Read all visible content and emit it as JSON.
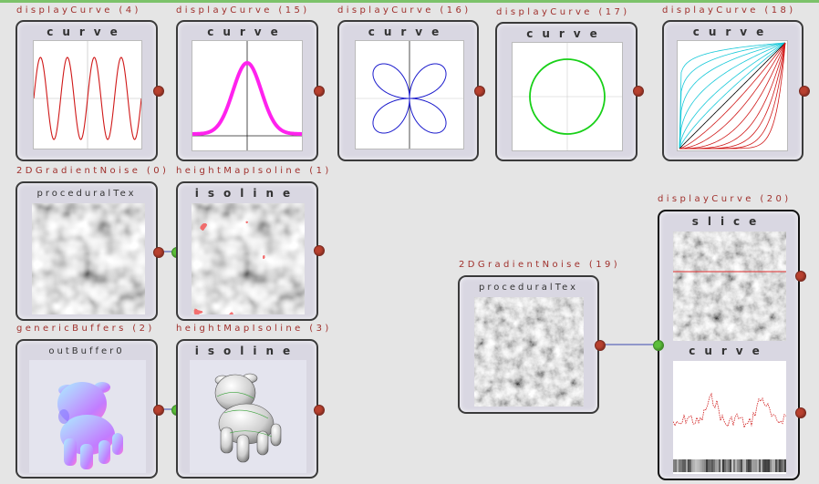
{
  "nodes": {
    "dc4": {
      "title": "displayCurve (4)",
      "panels": [
        "curve"
      ]
    },
    "dc15": {
      "title": "displayCurve (15)",
      "panels": [
        "curve"
      ]
    },
    "dc16": {
      "title": "displayCurve (16)",
      "panels": [
        "curve"
      ]
    },
    "dc17": {
      "title": "displayCurve (17)",
      "panels": [
        "curve"
      ]
    },
    "dc18": {
      "title": "displayCurve (18)",
      "panels": [
        "curve"
      ]
    },
    "gn0": {
      "title": "2DGradientNoise (0)",
      "panels": [
        "proceduralTex"
      ]
    },
    "hmi1": {
      "title": "heightMapIsoline (1)",
      "panels": [
        "isoline"
      ]
    },
    "gb2": {
      "title": "genericBuffers (2)",
      "panels": [
        "outBuffer0"
      ]
    },
    "hmi3": {
      "title": "heightMapIsoline (3)",
      "panels": [
        "isoline"
      ]
    },
    "gn19": {
      "title": "2DGradientNoise (19)",
      "panels": [
        "proceduralTex"
      ]
    },
    "dc20": {
      "title": "displayCurve (20)",
      "panels": [
        "slice",
        "curve"
      ]
    }
  },
  "colors": {
    "background": "#e5e5e5",
    "node_fill": "#d9d7e2",
    "title_text": "#a0302c",
    "output_port": "#b8402f",
    "input_port": "#5cbf3a",
    "wire": "#3a49b0",
    "sine_curve": "#d01818",
    "gaussian_curve": "#ff22ee",
    "rose_curve": "#1a1acc",
    "circle_curve": "#18d018",
    "slice_line": "#e03030"
  },
  "icons": {
    "output_port": "red-dot",
    "input_port": "green-dot"
  }
}
